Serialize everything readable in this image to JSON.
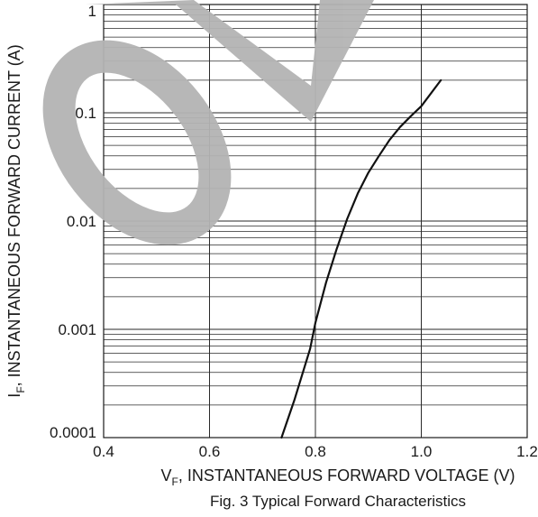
{
  "chart_data": {
    "type": "line",
    "title": "",
    "caption": "Fig. 3  Typical Forward Characteristics",
    "xlabel": {
      "main": "V",
      "sub": "F",
      "rest": ", INSTANTANEOUS FORWARD VOLTAGE (V)"
    },
    "ylabel": {
      "main": "I",
      "sub": "F",
      "rest": ", INSTANTANEOUS FORWARD CURRENT (A)"
    },
    "xlim": [
      0.4,
      1.2
    ],
    "ylim": [
      0.0001,
      1
    ],
    "yscale": "log",
    "grid": true,
    "x_ticks": [
      0.4,
      0.6,
      0.8,
      1.0,
      1.2
    ],
    "x_tick_labels": [
      "0.4",
      "0.6",
      "0.8",
      "1.0",
      "1.2"
    ],
    "y_ticks": [
      0.0001,
      0.001,
      0.01,
      0.1,
      1
    ],
    "y_tick_labels": [
      "0.0001",
      "0.001",
      "0.01",
      "0.1",
      "1"
    ],
    "series": [
      {
        "x": [
          0.736,
          0.76,
          0.79,
          0.8,
          0.82,
          0.84,
          0.86,
          0.88,
          0.9,
          0.92,
          0.94,
          0.96,
          0.98,
          1.0,
          1.037
        ],
        "y": [
          0.0001,
          0.00022,
          0.00066,
          0.00115,
          0.0027,
          0.0055,
          0.0105,
          0.018,
          0.028,
          0.04,
          0.056,
          0.074,
          0.093,
          0.115,
          0.2
        ]
      }
    ],
    "colors": {
      "curve": "#111111",
      "grid": "#2a2a2a"
    }
  },
  "watermark": {
    "text": "OD",
    "color": "#b4b4b4"
  }
}
